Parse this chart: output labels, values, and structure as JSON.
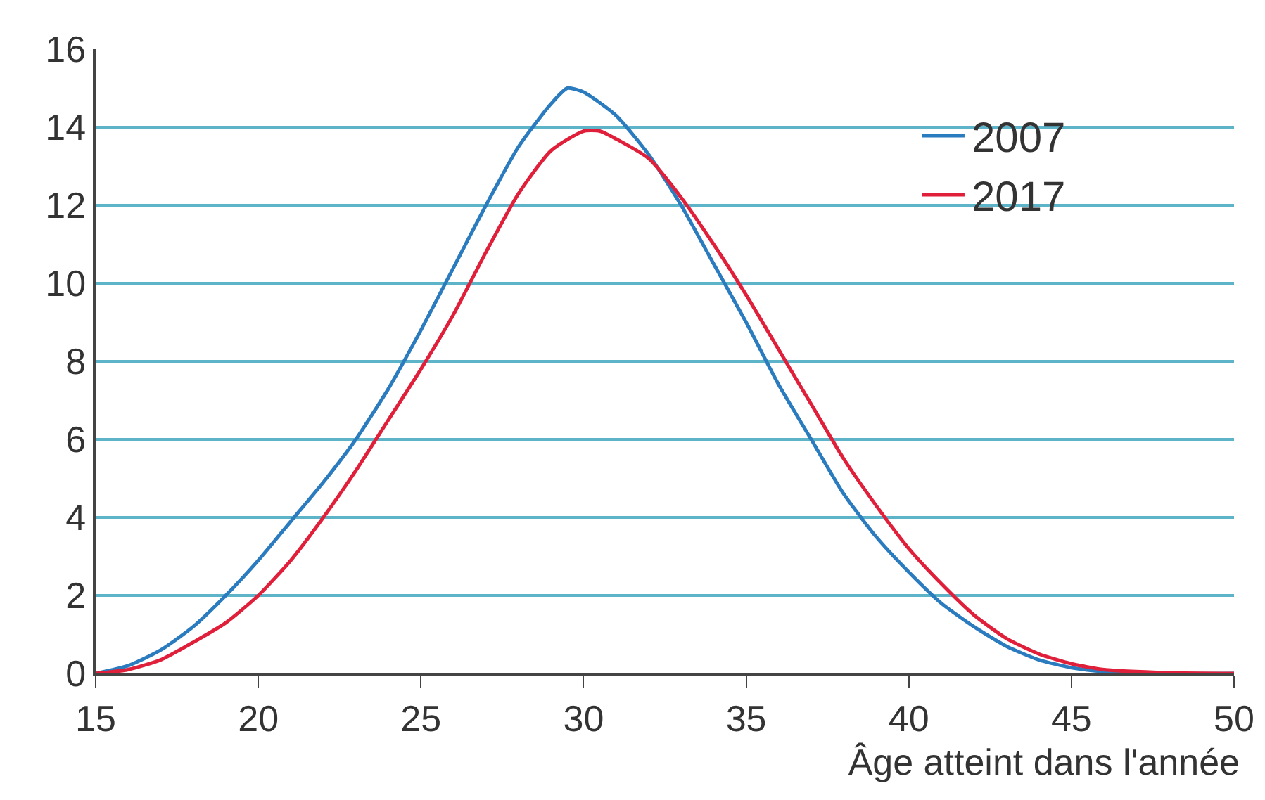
{
  "chart_data": {
    "type": "line",
    "xlabel": "Âge atteint dans l'année",
    "xlim": [
      15,
      50
    ],
    "xticks": [
      15,
      20,
      25,
      30,
      35,
      40,
      45,
      50
    ],
    "ylim": [
      0,
      16
    ],
    "yticks": [
      0,
      2,
      4,
      6,
      8,
      10,
      12,
      14,
      16
    ],
    "grid": "y",
    "legend": "top right",
    "marker": "none",
    "line_style": "solid",
    "series": [
      {
        "name": "2007",
        "color": "#2b7bbf",
        "x": [
          15,
          16,
          17,
          18,
          19,
          20,
          21,
          22,
          23,
          24,
          25,
          26,
          27,
          28,
          29,
          29.5,
          30,
          31,
          32,
          33,
          34,
          35,
          36,
          37,
          38,
          39,
          40,
          41,
          42,
          43,
          44,
          45,
          46,
          48,
          50
        ],
        "values": [
          0,
          0.2,
          0.6,
          1.2,
          2.0,
          2.9,
          3.9,
          4.9,
          6.0,
          7.3,
          8.8,
          10.4,
          12.0,
          13.5,
          14.6,
          15.0,
          14.9,
          14.3,
          13.3,
          12.0,
          10.5,
          9.0,
          7.4,
          6.0,
          4.6,
          3.5,
          2.6,
          1.8,
          1.2,
          0.7,
          0.35,
          0.15,
          0.05,
          0,
          0
        ]
      },
      {
        "name": "2017",
        "color": "#e0203a",
        "x": [
          15,
          16,
          17,
          18,
          19,
          20,
          21,
          22,
          23,
          24,
          25,
          26,
          27,
          28,
          29,
          30,
          30.5,
          31,
          32,
          33,
          34,
          35,
          36,
          37,
          38,
          39,
          40,
          41,
          42,
          43,
          44,
          45,
          46,
          48,
          50
        ],
        "values": [
          0,
          0.1,
          0.35,
          0.8,
          1.3,
          2.0,
          2.9,
          4.0,
          5.2,
          6.5,
          7.8,
          9.2,
          10.8,
          12.3,
          13.4,
          13.9,
          13.9,
          13.7,
          13.2,
          12.2,
          11.0,
          9.7,
          8.3,
          6.9,
          5.5,
          4.3,
          3.2,
          2.3,
          1.5,
          0.9,
          0.5,
          0.25,
          0.1,
          0.02,
          0
        ]
      }
    ]
  }
}
